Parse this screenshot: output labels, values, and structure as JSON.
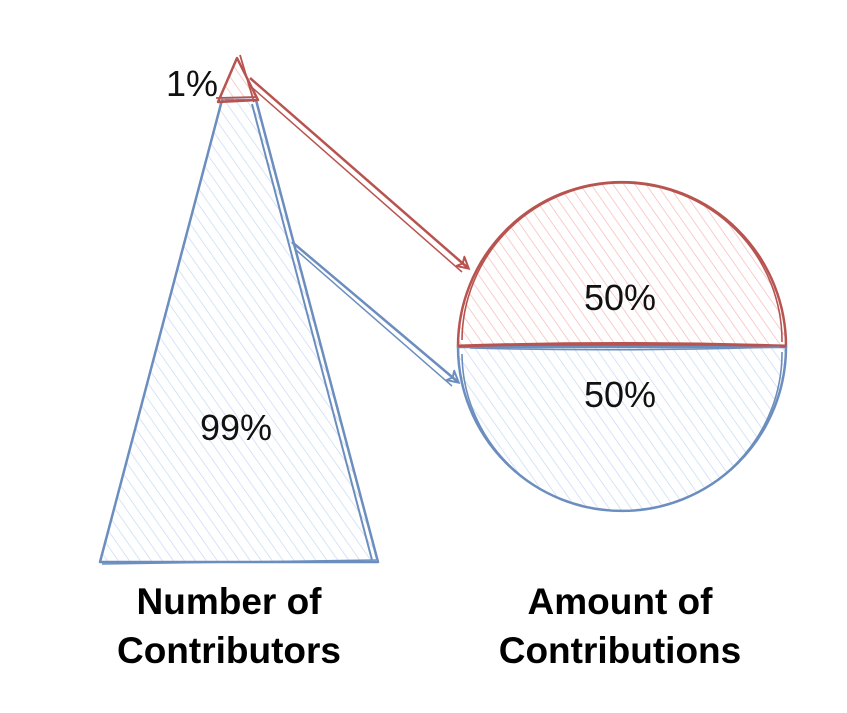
{
  "colors": {
    "red": "#b85450",
    "red_fill": "#f8cecc",
    "blue": "#6c8ebf",
    "blue_fill": "#dae8fc"
  },
  "pyramid": {
    "top_percent": "1%",
    "bottom_percent": "99%",
    "caption_line1": "Number of",
    "caption_line2": "Contributors"
  },
  "circle": {
    "top_percent": "50%",
    "bottom_percent": "50%",
    "caption_line1": "Amount of",
    "caption_line2": "Contributions"
  }
}
